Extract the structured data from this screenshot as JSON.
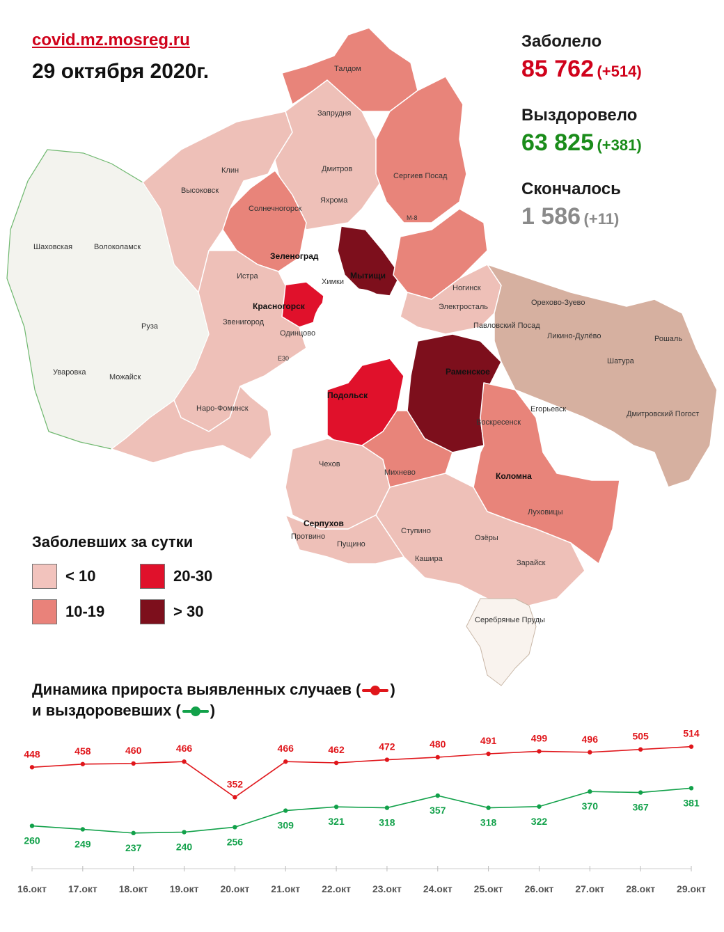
{
  "header": {
    "site": "covid.mz.mosreg.ru",
    "date": "29 октября 2020г."
  },
  "stats": {
    "infected": {
      "label": "Заболело",
      "value": "85 762",
      "delta": "(+514)",
      "color": "#d0021b"
    },
    "recovered": {
      "label": "Выздоровело",
      "value": "63 825",
      "delta": "(+381)",
      "color": "#1a8c1a"
    },
    "died": {
      "label": "Скончалось",
      "value": "1 586",
      "delta": "(+11)",
      "color": "#8a8a8a"
    }
  },
  "map": {
    "cities": [
      "Талдом",
      "Запрудня",
      "Клин",
      "Дмитров",
      "Высоковск",
      "Яхрома",
      "Сергиев Посад",
      "Солнечногорск",
      "Шаховская",
      "Волоколамск",
      "Зеленоград",
      "Истра",
      "Химки",
      "Мытищи",
      "Ногинск",
      "Красногорск",
      "Электросталь",
      "Орехово-Зуево",
      "Павловский Посад",
      "Звенигород",
      "Одинцово",
      "Руза",
      "Ликино-Дулёво",
      "Рошаль",
      "Шатура",
      "Уваровка",
      "Можайск",
      "Раменское",
      "Подольск",
      "Егорьевск",
      "Наро-Фоминск",
      "Воскресенск",
      "Дмитровский Погост",
      "Чехов",
      "Михнево",
      "Коломна",
      "Луховицы",
      "Серпухов",
      "Протвино",
      "Ступино",
      "Озёры",
      "Пущино",
      "Кашира",
      "Зарайск",
      "Серебряные Пруды"
    ],
    "road_labels": [
      "M-8",
      "E30"
    ],
    "colors": {
      "lt10": "#eec0b8",
      "10to19": "#e8847a",
      "20to30": "#e0112b",
      "gt30": "#7d0f1c",
      "none": "#f3f3ee"
    }
  },
  "legend": {
    "title": "Заболевших за сутки",
    "items": [
      {
        "label": "< 10",
        "color": "#f2c3bd"
      },
      {
        "label": "20-30",
        "color": "#e0112b"
      },
      {
        "label": "10-19",
        "color": "#e9827a"
      },
      {
        "label": "> 30",
        "color": "#7d0f1c"
      }
    ]
  },
  "dynamics": {
    "title_line1_a": "Динамика прироста выявленных случаев (",
    "title_line1_b": ")",
    "title_line2_a": "и выздоровевших (",
    "title_line2_b": ")"
  },
  "chart_data": {
    "type": "line",
    "x": [
      "16.окт",
      "17.окт",
      "18.окт",
      "19.окт",
      "20.окт",
      "21.окт",
      "22.окт",
      "23.окт",
      "24.окт",
      "25.окт",
      "26.окт",
      "27.окт",
      "28.окт",
      "29.окт"
    ],
    "series": [
      {
        "name": "выявленных случаев",
        "color": "#e0161b",
        "values": [
          448,
          458,
          460,
          466,
          352,
          466,
          462,
          472,
          480,
          491,
          499,
          496,
          505,
          514
        ]
      },
      {
        "name": "выздоровевших",
        "color": "#12a14a",
        "values": [
          260,
          249,
          237,
          240,
          256,
          309,
          321,
          318,
          357,
          318,
          322,
          370,
          367,
          381
        ]
      }
    ],
    "title": "",
    "xlabel": "",
    "ylabel": ""
  }
}
